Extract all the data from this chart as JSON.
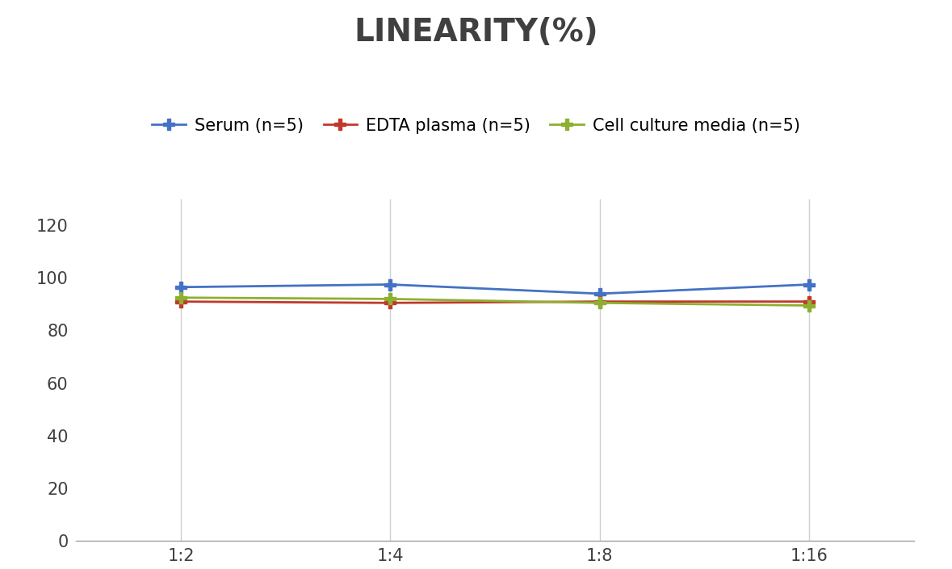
{
  "title": "LINEARITY(%)",
  "title_fontsize": 28,
  "title_fontweight": "bold",
  "title_color": "#404040",
  "x_labels": [
    "1:2",
    "1:4",
    "1:8",
    "1:16"
  ],
  "x_positions": [
    0,
    1,
    2,
    3
  ],
  "series": [
    {
      "label": "Serum (n=5)",
      "values": [
        96.5,
        97.5,
        94.0,
        97.5
      ],
      "color": "#4472C4",
      "marker": "P",
      "markersize": 10,
      "linewidth": 2
    },
    {
      "label": "EDTA plasma (n=5)",
      "values": [
        91.0,
        90.5,
        91.0,
        91.0
      ],
      "color": "#C0392B",
      "marker": "P",
      "markersize": 10,
      "linewidth": 2
    },
    {
      "label": "Cell culture media (n=5)",
      "values": [
        92.5,
        92.0,
        90.5,
        89.5
      ],
      "color": "#8DB030",
      "marker": "P",
      "markersize": 10,
      "linewidth": 2
    }
  ],
  "ylim": [
    0,
    130
  ],
  "yticks": [
    0,
    20,
    40,
    60,
    80,
    100,
    120
  ],
  "grid_color": "#D0D0D0",
  "background_color": "#FFFFFF",
  "legend_fontsize": 15,
  "tick_fontsize": 15,
  "tick_color": "#404040"
}
